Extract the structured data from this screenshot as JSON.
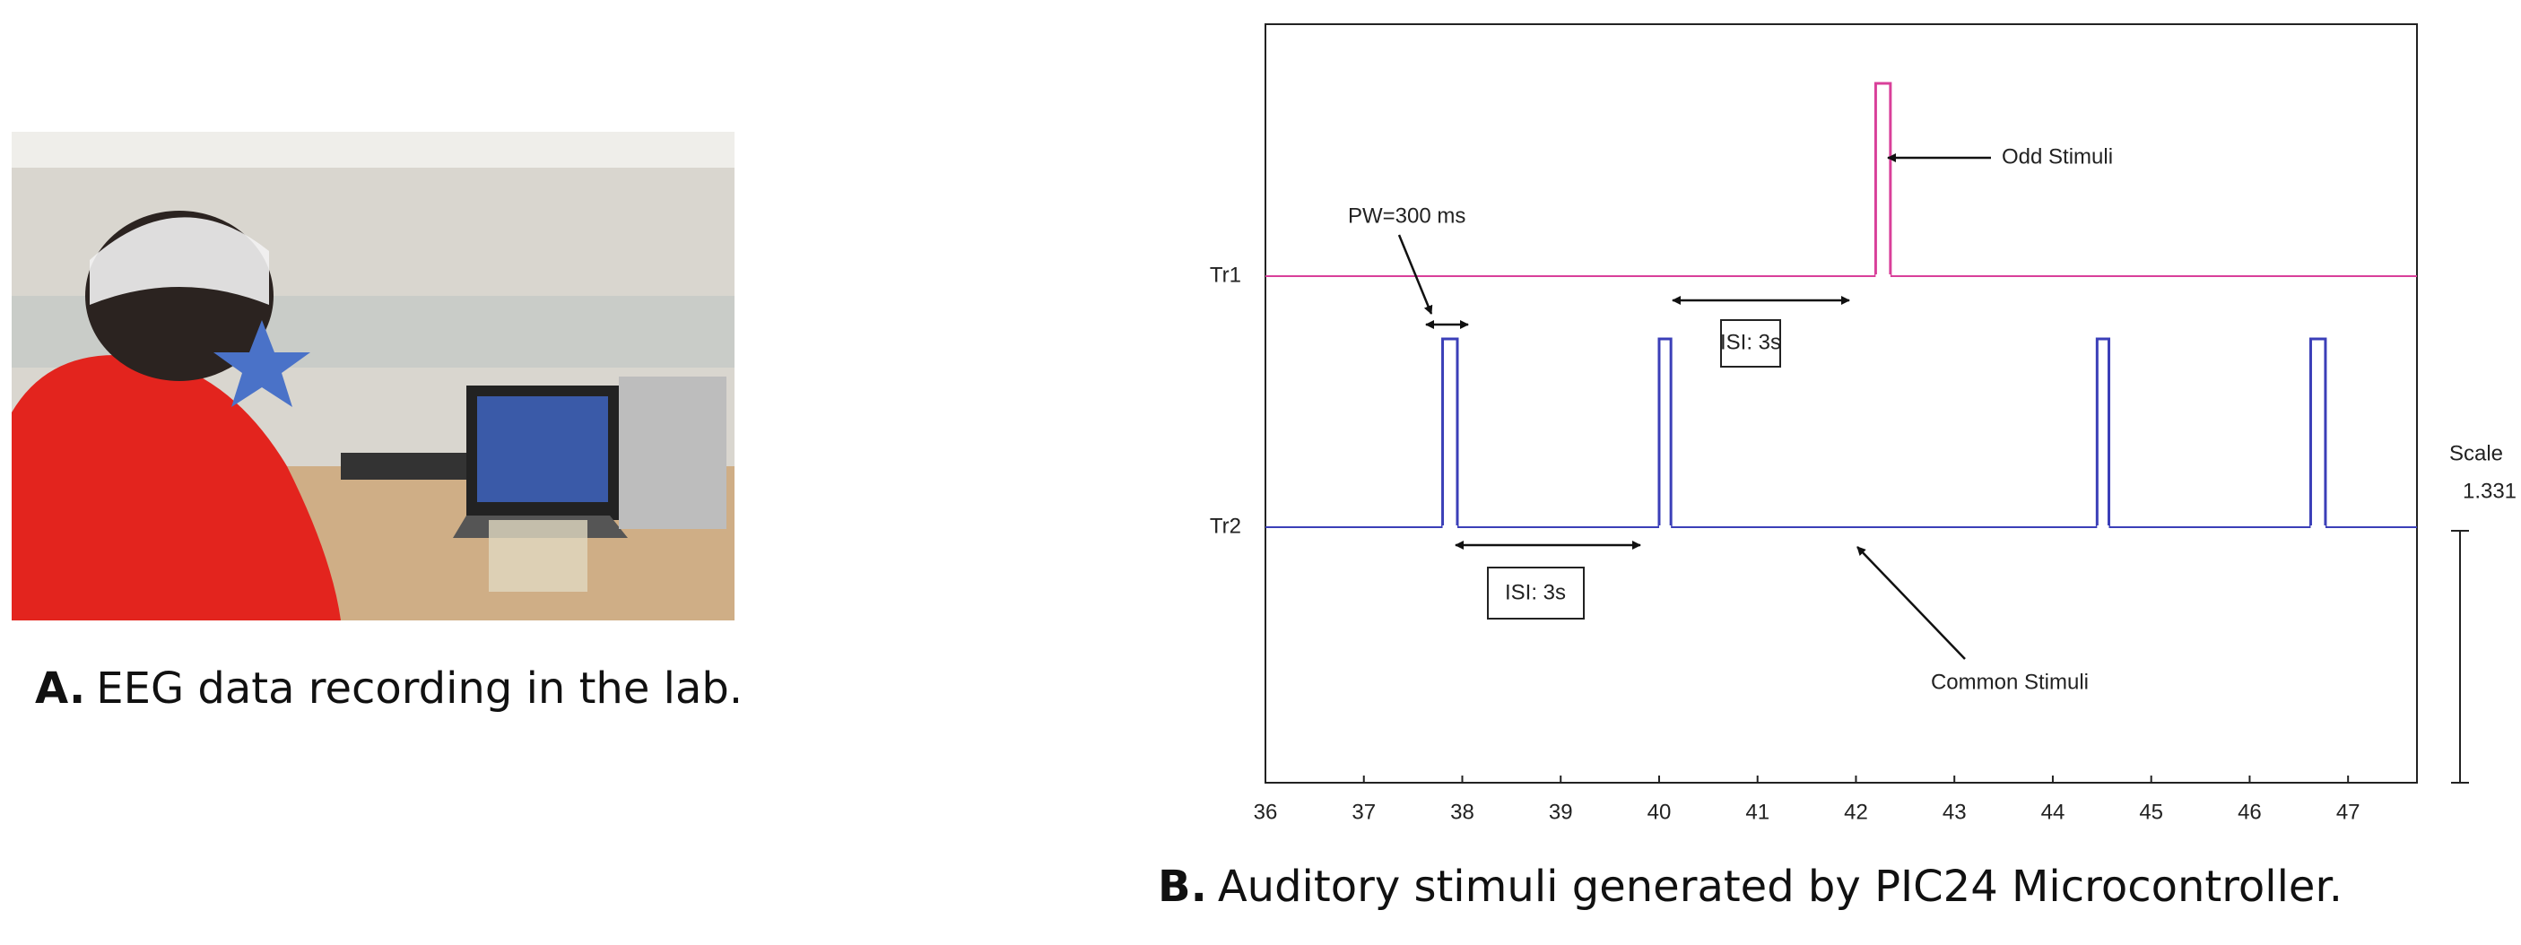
{
  "panel_a": {
    "label": "A.",
    "caption": "EEG data recording in the lab."
  },
  "chart_data": {
    "type": "pulse",
    "label": "B.",
    "caption": "Auditory stimuli generated by PIC24 Microcontroller.",
    "xlim": [
      36,
      47.7
    ],
    "xticks": [
      36,
      37,
      38,
      39,
      40,
      41,
      42,
      43,
      44,
      45,
      46,
      47
    ],
    "series": [
      {
        "name": "Tr1",
        "color": "#d9409a",
        "pulses": [
          [
            42.2,
            42.35
          ]
        ]
      },
      {
        "name": "Tr2",
        "color": "#3b3fb8",
        "pulses": [
          [
            37.8,
            37.95
          ],
          [
            40.0,
            40.12
          ],
          [
            44.45,
            44.57
          ],
          [
            46.62,
            46.77
          ]
        ]
      }
    ],
    "annotations": [
      "Odd Stimuli",
      "PW=300 ms",
      "ISI: 3s",
      "ISI: 3s",
      "Common Stimuli"
    ],
    "scale_label": "Scale",
    "scale_value": 1.331
  }
}
